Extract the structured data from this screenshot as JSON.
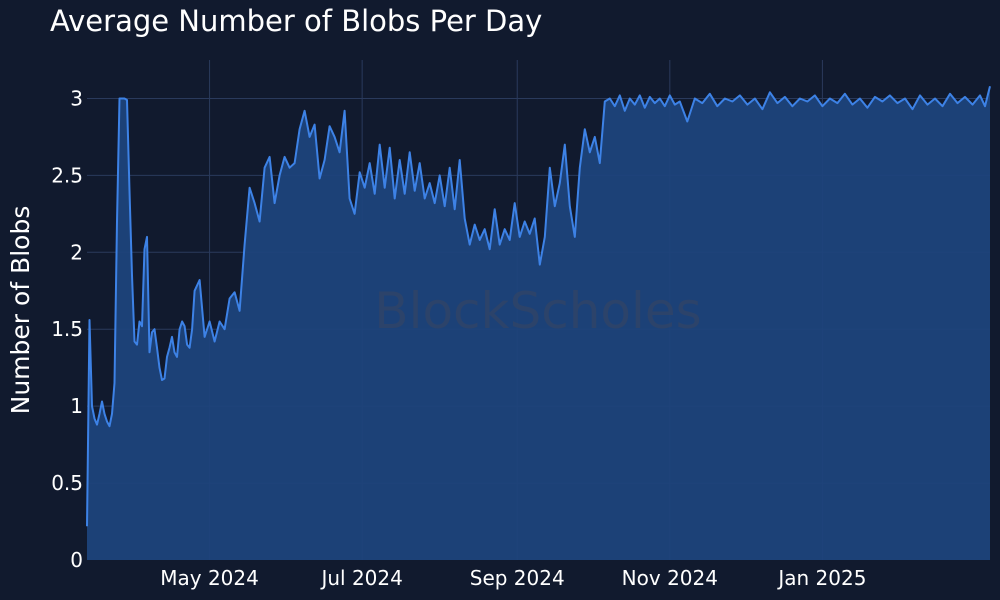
{
  "chart_data": {
    "type": "area",
    "title": "Average Number of Blobs Per Day",
    "xlabel": "",
    "ylabel": "Number of Blobs",
    "xlim": [
      "2024-03-13",
      "2025-03-09"
    ],
    "ylim": [
      0,
      3.25
    ],
    "yticks": [
      0,
      0.5,
      1,
      1.5,
      2,
      2.5,
      3
    ],
    "ytick_labels": [
      "0",
      "0.5",
      "1",
      "1.5",
      "2",
      "2.5",
      "3"
    ],
    "xticks": [
      "2024-05-01",
      "2024-07-01",
      "2024-09-01",
      "2024-11-01",
      "2025-01-01"
    ],
    "xtick_labels": [
      "May 2024",
      "Jul 2024",
      "Sep 2024",
      "Nov 2024",
      "Jan 2025"
    ],
    "grid": true,
    "watermark": "BlockScholes",
    "colors": {
      "background": "#111a2e",
      "line": "#3d82e6",
      "fill": "#1e437b",
      "grid": "#2a3a5c"
    },
    "series": [
      {
        "x": [
          "2024-03-13",
          "2024-03-14",
          "2024-03-15",
          "2024-03-16",
          "2024-03-17",
          "2024-03-18",
          "2024-03-19",
          "2024-03-20",
          "2024-03-21",
          "2024-03-22",
          "2024-03-23",
          "2024-03-24",
          "2024-03-25",
          "2024-03-26",
          "2024-03-27",
          "2024-03-28",
          "2024-03-29",
          "2024-03-30",
          "2024-03-31",
          "2024-04-01",
          "2024-04-02",
          "2024-04-03",
          "2024-04-04",
          "2024-04-05",
          "2024-04-06",
          "2024-04-07",
          "2024-04-08",
          "2024-04-09",
          "2024-04-10",
          "2024-04-11",
          "2024-04-12",
          "2024-04-13",
          "2024-04-14",
          "2024-04-15",
          "2024-04-16",
          "2024-04-17",
          "2024-04-18",
          "2024-04-19",
          "2024-04-20",
          "2024-04-21",
          "2024-04-22",
          "2024-04-23",
          "2024-04-24",
          "2024-04-25",
          "2024-04-27",
          "2024-04-29",
          "2024-05-01",
          "2024-05-03",
          "2024-05-05",
          "2024-05-07",
          "2024-05-09",
          "2024-05-11",
          "2024-05-13",
          "2024-05-15",
          "2024-05-17",
          "2024-05-19",
          "2024-05-21",
          "2024-05-23",
          "2024-05-25",
          "2024-05-27",
          "2024-05-29",
          "2024-05-31",
          "2024-06-02",
          "2024-06-04",
          "2024-06-06",
          "2024-06-08",
          "2024-06-10",
          "2024-06-12",
          "2024-06-14",
          "2024-06-16",
          "2024-06-18",
          "2024-06-20",
          "2024-06-22",
          "2024-06-24",
          "2024-06-26",
          "2024-06-28",
          "2024-06-30",
          "2024-07-02",
          "2024-07-04",
          "2024-07-06",
          "2024-07-08",
          "2024-07-10",
          "2024-07-12",
          "2024-07-14",
          "2024-07-16",
          "2024-07-18",
          "2024-07-20",
          "2024-07-22",
          "2024-07-24",
          "2024-07-26",
          "2024-07-28",
          "2024-07-30",
          "2024-08-01",
          "2024-08-03",
          "2024-08-05",
          "2024-08-07",
          "2024-08-09",
          "2024-08-11",
          "2024-08-13",
          "2024-08-15",
          "2024-08-17",
          "2024-08-19",
          "2024-08-21",
          "2024-08-23",
          "2024-08-25",
          "2024-08-27",
          "2024-08-29",
          "2024-08-31",
          "2024-09-02",
          "2024-09-04",
          "2024-09-06",
          "2024-09-08",
          "2024-09-10",
          "2024-09-12",
          "2024-09-14",
          "2024-09-16",
          "2024-09-18",
          "2024-09-20",
          "2024-09-22",
          "2024-09-24",
          "2024-09-26",
          "2024-09-28",
          "2024-09-30",
          "2024-10-02",
          "2024-10-04",
          "2024-10-06",
          "2024-10-08",
          "2024-10-10",
          "2024-10-12",
          "2024-10-14",
          "2024-10-16",
          "2024-10-18",
          "2024-10-20",
          "2024-10-22",
          "2024-10-24",
          "2024-10-26",
          "2024-10-28",
          "2024-10-30",
          "2024-11-01",
          "2024-11-03",
          "2024-11-05",
          "2024-11-08",
          "2024-11-11",
          "2024-11-14",
          "2024-11-17",
          "2024-11-20",
          "2024-11-23",
          "2024-11-26",
          "2024-11-29",
          "2024-12-02",
          "2024-12-05",
          "2024-12-08",
          "2024-12-11",
          "2024-12-14",
          "2024-12-17",
          "2024-12-20",
          "2024-12-23",
          "2024-12-26",
          "2024-12-29",
          "2025-01-01",
          "2025-01-04",
          "2025-01-07",
          "2025-01-10",
          "2025-01-13",
          "2025-01-16",
          "2025-01-19",
          "2025-01-22",
          "2025-01-25",
          "2025-01-28",
          "2025-01-31",
          "2025-02-03",
          "2025-02-06",
          "2025-02-09",
          "2025-02-12",
          "2025-02-15",
          "2025-02-18",
          "2025-02-21",
          "2025-02-24",
          "2025-02-27",
          "2025-03-02",
          "2025-03-05",
          "2025-03-07",
          "2025-03-09"
        ],
        "y": [
          0.22,
          1.56,
          1.0,
          0.92,
          0.88,
          0.95,
          1.03,
          0.95,
          0.9,
          0.87,
          0.95,
          1.15,
          2.2,
          3.0,
          3.0,
          3.0,
          2.99,
          2.4,
          1.85,
          1.42,
          1.4,
          1.55,
          1.52,
          2.02,
          2.1,
          1.35,
          1.48,
          1.5,
          1.38,
          1.25,
          1.17,
          1.18,
          1.32,
          1.38,
          1.45,
          1.35,
          1.32,
          1.5,
          1.55,
          1.52,
          1.4,
          1.38,
          1.5,
          1.75,
          1.82,
          1.45,
          1.55,
          1.42,
          1.55,
          1.5,
          1.7,
          1.74,
          1.62,
          2.05,
          2.42,
          2.32,
          2.2,
          2.55,
          2.62,
          2.32,
          2.5,
          2.62,
          2.55,
          2.58,
          2.8,
          2.92,
          2.75,
          2.83,
          2.48,
          2.6,
          2.82,
          2.75,
          2.65,
          2.92,
          2.35,
          2.25,
          2.52,
          2.42,
          2.58,
          2.38,
          2.7,
          2.42,
          2.68,
          2.35,
          2.6,
          2.38,
          2.65,
          2.4,
          2.58,
          2.35,
          2.45,
          2.32,
          2.5,
          2.3,
          2.55,
          2.28,
          2.6,
          2.22,
          2.05,
          2.18,
          2.08,
          2.15,
          2.02,
          2.28,
          2.05,
          2.15,
          2.08,
          2.32,
          2.1,
          2.2,
          2.12,
          2.22,
          1.92,
          2.1,
          2.55,
          2.3,
          2.45,
          2.7,
          2.3,
          2.1,
          2.55,
          2.8,
          2.65,
          2.75,
          2.58,
          2.98,
          3.0,
          2.95,
          3.02,
          2.92,
          3.0,
          2.96,
          3.02,
          2.94,
          3.01,
          2.97,
          3.0,
          2.95,
          3.02,
          2.96,
          2.98,
          2.85,
          3.0,
          2.97,
          3.03,
          2.95,
          3.0,
          2.98,
          3.02,
          2.96,
          3.0,
          2.93,
          3.04,
          2.97,
          3.01,
          2.95,
          3.0,
          2.98,
          3.02,
          2.95,
          3.0,
          2.97,
          3.03,
          2.96,
          3.0,
          2.94,
          3.01,
          2.98,
          3.02,
          2.97,
          3.0,
          2.93,
          3.02,
          2.96,
          3.0,
          2.95,
          3.03,
          2.97,
          3.01,
          2.96,
          3.02,
          2.95,
          3.08
        ]
      }
    ]
  }
}
